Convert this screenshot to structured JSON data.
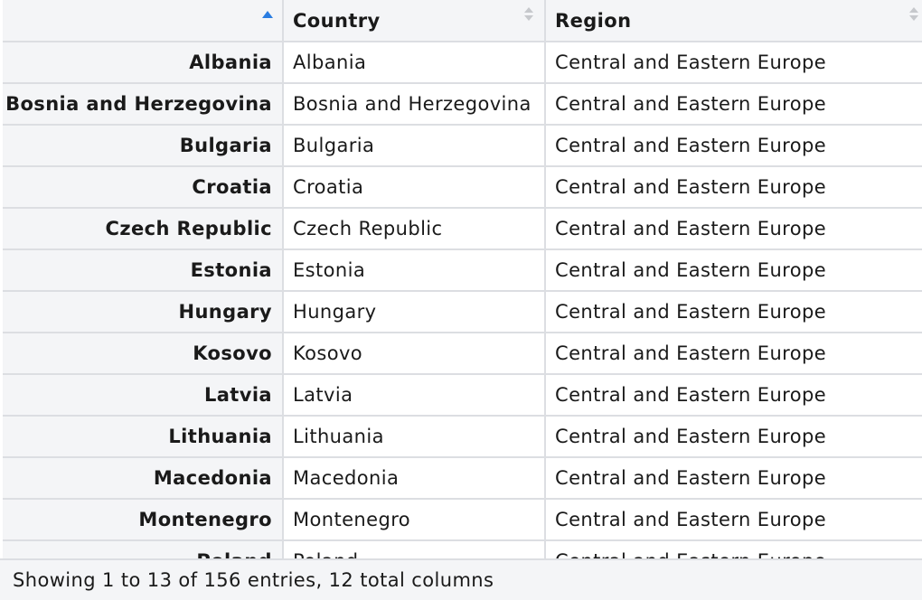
{
  "table": {
    "columns": [
      "",
      "Country",
      "Region"
    ],
    "rows": [
      {
        "name": "Albania",
        "country": "Albania",
        "region": "Central and Eastern Europe"
      },
      {
        "name": "Bosnia and Herzegovina",
        "country": "Bosnia and Herzegovina",
        "region": "Central and Eastern Europe"
      },
      {
        "name": "Bulgaria",
        "country": "Bulgaria",
        "region": "Central and Eastern Europe"
      },
      {
        "name": "Croatia",
        "country": "Croatia",
        "region": "Central and Eastern Europe"
      },
      {
        "name": "Czech Republic",
        "country": "Czech Republic",
        "region": "Central and Eastern Europe"
      },
      {
        "name": "Estonia",
        "country": "Estonia",
        "region": "Central and Eastern Europe"
      },
      {
        "name": "Hungary",
        "country": "Hungary",
        "region": "Central and Eastern Europe"
      },
      {
        "name": "Kosovo",
        "country": "Kosovo",
        "region": "Central and Eastern Europe"
      },
      {
        "name": "Latvia",
        "country": "Latvia",
        "region": "Central and Eastern Europe"
      },
      {
        "name": "Lithuania",
        "country": "Lithuania",
        "region": "Central and Eastern Europe"
      },
      {
        "name": "Macedonia",
        "country": "Macedonia",
        "region": "Central and Eastern Europe"
      },
      {
        "name": "Montenegro",
        "country": "Montenegro",
        "region": "Central and Eastern Europe"
      },
      {
        "name": "Poland",
        "country": "Poland",
        "region": "Central and Eastern Europe"
      }
    ]
  },
  "footer": {
    "status": "Showing 1 to 13 of 156 entries, 12 total columns"
  },
  "colors": {
    "header_bg": "#f4f5f7",
    "border": "#dcdee2",
    "sort_active": "#2a7de1",
    "sort_inactive": "#c6c8cc"
  },
  "icons": {
    "sort_active": "sort-ascending-icon",
    "sort_inactive": "sort-both-icon"
  }
}
